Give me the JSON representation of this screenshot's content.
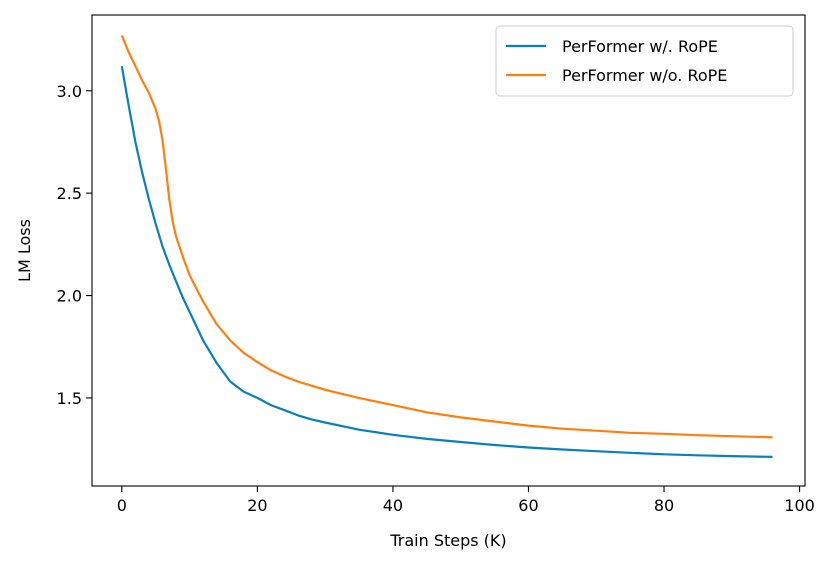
{
  "chart_data": {
    "type": "line",
    "title": "",
    "xlabel": "Train Steps (K)",
    "ylabel": "LM Loss",
    "xlim": [
      -4.4,
      100.8
    ],
    "ylim": [
      1.07,
      3.37
    ],
    "xticks": [
      0,
      20,
      40,
      60,
      80,
      100
    ],
    "xtick_labels": [
      "0",
      "20",
      "40",
      "60",
      "80",
      "100"
    ],
    "yticks": [
      1.5,
      2.0,
      2.5,
      3.0
    ],
    "ytick_labels": [
      "1.5",
      "2.0",
      "2.5",
      "3.0"
    ],
    "grid": false,
    "legend_position": "top-right",
    "series": [
      {
        "name": "PerFormer w/. RoPE",
        "color": "#0a7fbe",
        "x": [
          0,
          1,
          2,
          3,
          4,
          5,
          6,
          7,
          8,
          9,
          10,
          12,
          14,
          16,
          18,
          20,
          22,
          24,
          26,
          28,
          30,
          35,
          40,
          45,
          50,
          55,
          60,
          65,
          70,
          75,
          80,
          85,
          90,
          96
        ],
        "y": [
          3.12,
          2.93,
          2.75,
          2.6,
          2.47,
          2.35,
          2.24,
          2.15,
          2.07,
          1.99,
          1.92,
          1.78,
          1.67,
          1.58,
          1.53,
          1.5,
          1.465,
          1.44,
          1.415,
          1.395,
          1.38,
          1.345,
          1.32,
          1.3,
          1.285,
          1.27,
          1.258,
          1.248,
          1.24,
          1.232,
          1.225,
          1.22,
          1.216,
          1.212
        ]
      },
      {
        "name": "PerFormer w/o. RoPE",
        "color": "#ff7f0e",
        "x": [
          0,
          1,
          2,
          3,
          4,
          5,
          5.5,
          6,
          6.5,
          7,
          7.5,
          8,
          9,
          10,
          12,
          14,
          16,
          18,
          20,
          22,
          24,
          26,
          28,
          30,
          35,
          40,
          45,
          50,
          55,
          60,
          65,
          70,
          75,
          80,
          85,
          90,
          96
        ],
        "y": [
          3.27,
          3.19,
          3.12,
          3.05,
          2.99,
          2.91,
          2.85,
          2.76,
          2.62,
          2.47,
          2.36,
          2.29,
          2.19,
          2.1,
          1.97,
          1.86,
          1.78,
          1.72,
          1.675,
          1.635,
          1.605,
          1.58,
          1.56,
          1.54,
          1.5,
          1.465,
          1.43,
          1.405,
          1.385,
          1.365,
          1.35,
          1.34,
          1.33,
          1.325,
          1.318,
          1.313,
          1.308
        ]
      }
    ]
  }
}
